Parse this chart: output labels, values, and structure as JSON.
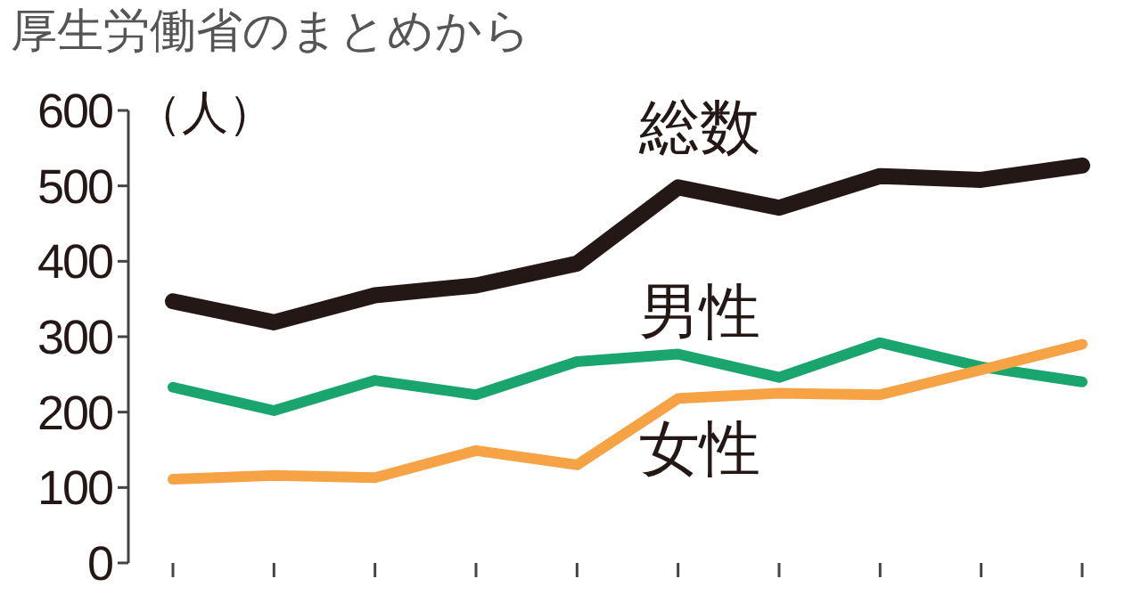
{
  "chart_data": {
    "type": "line",
    "title": "厚生労働省のまとめから",
    "ylabel": "（人）",
    "categories": [
      null,
      null,
      null,
      null,
      null,
      null,
      null,
      null,
      null,
      null
    ],
    "series": [
      {
        "name": "総数",
        "color": "#231815",
        "values": [
          347,
          319,
          355,
          368,
          397,
          498,
          471,
          513,
          508,
          527
        ]
      },
      {
        "name": "男性",
        "color": "#1aa56f",
        "values": [
          233,
          202,
          242,
          223,
          267,
          277,
          246,
          292,
          260,
          240
        ]
      },
      {
        "name": "女性",
        "color": "#f5a345",
        "values": [
          111,
          116,
          113,
          149,
          130,
          218,
          225,
          223,
          256,
          290
        ]
      }
    ],
    "ylim": [
      0,
      600
    ],
    "yticks": [
      0,
      100,
      200,
      300,
      400,
      500,
      600
    ],
    "grid": false,
    "marker": "none",
    "line_style": "solid"
  }
}
